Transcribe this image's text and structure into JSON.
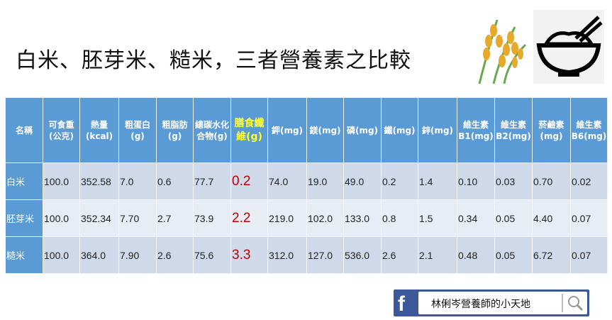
{
  "title": "白米、胚芽米、糙米，三者營養素之比較",
  "table": {
    "headers": [
      "名稱",
      "可食重(公克)",
      "熱量(kcal)",
      "粗蛋白(g)",
      "粗脂肪(g)",
      "總碳水化合物(g)",
      "膳食纖維(g)",
      "鉀(mg)",
      "鎂(mg)",
      "磷(mg)",
      "鐵(mg)",
      "鋅(mg)",
      "維生素B1(mg)",
      "維生素B2(mg)",
      "菸鹼素(mg)",
      "維生素B6(mg)"
    ],
    "rows": [
      [
        "白米",
        "100.0",
        "352.58",
        "7.0",
        "0.6",
        "77.7",
        "0.2",
        "74.0",
        "19.0",
        "49.0",
        "0.2",
        "1.4",
        "0.10",
        "0.03",
        "0.70",
        "0.02"
      ],
      [
        "胚芽米",
        "100.0",
        "352.34",
        "7.70",
        "2.7",
        "73.9",
        "2.2",
        "219.0",
        "102.0",
        "133.0",
        "0.8",
        "1.5",
        "0.34",
        "0.05",
        "4.40",
        "0.07"
      ],
      [
        "糙米",
        "100.0",
        "364.0",
        "7.90",
        "2.6",
        "75.6",
        "3.3",
        "312.0",
        "127.0",
        "536.0",
        "2.6",
        "2.1",
        "0.48",
        "0.05",
        "6.72",
        "0.07"
      ]
    ]
  },
  "facebook": {
    "logo": "f",
    "page_name": "林俐岑營養師的小天地"
  },
  "colors": {
    "header": "#5b9bd5",
    "highlight": "#ffff33",
    "fiber": "#c00000",
    "facebook": "#3b5998"
  }
}
